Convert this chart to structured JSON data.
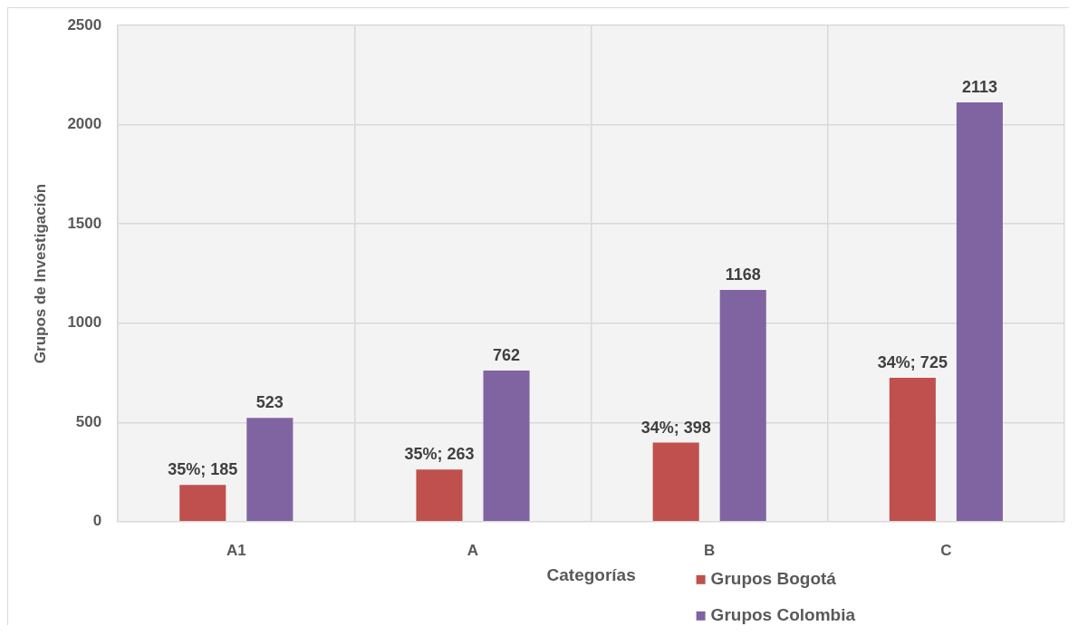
{
  "chart_data": {
    "type": "bar",
    "xlabel": "Categorías",
    "ylabel": "Grupos de Investigación",
    "categories": [
      "A1",
      "A",
      "B",
      "C"
    ],
    "series": [
      {
        "name": "Grupos Bogotá",
        "color": "#c0504d",
        "values": [
          185,
          263,
          398,
          725
        ],
        "value_labels": [
          "35%; 185",
          "35%; 263",
          "34%; 398",
          "34%; 725"
        ]
      },
      {
        "name": "Grupos Colombia",
        "color": "#8064a2",
        "values": [
          523,
          762,
          1168,
          2113
        ],
        "value_labels": [
          "523",
          "762",
          "1168",
          "2113"
        ]
      }
    ],
    "ylim": [
      0,
      2500
    ],
    "yticks": [
      0,
      500,
      1000,
      1500,
      2000,
      2500
    ],
    "grid": true,
    "legend": "bottom"
  }
}
